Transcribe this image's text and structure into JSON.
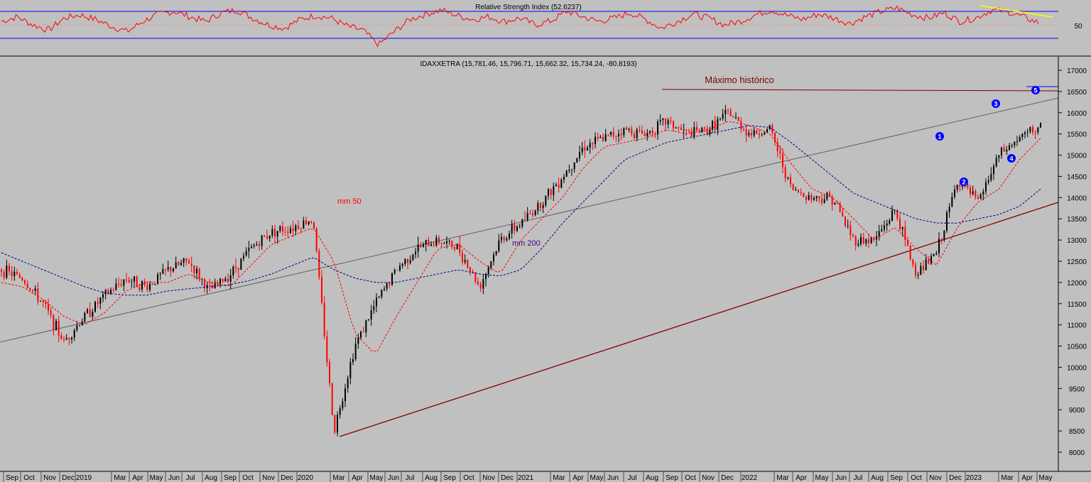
{
  "rsi_panel": {
    "title": "Relative Strength Index (52.6237)",
    "axis_ticks": [
      50
    ],
    "bands": [
      30,
      70
    ]
  },
  "price_panel": {
    "title": "IDAXXETRA (15,781.46, 15,796.71, 15,662.32, 15,734.24, -80.8193)",
    "annotations": {
      "ath": "Máximo histórico",
      "mm50": "mm 50",
      "mm200": "mm 200"
    },
    "wave_labels": [
      "1",
      "2",
      "3",
      "4",
      "5"
    ],
    "y_ticks": [
      17000,
      16500,
      16000,
      15500,
      15000,
      14500,
      14000,
      13500,
      13000,
      12500,
      12000,
      11500,
      11000,
      10500,
      10000,
      9500,
      9000,
      8500,
      8000
    ]
  },
  "x_axis": {
    "labels": [
      "Sep",
      "Oct",
      "Nov",
      "Dec",
      "2019",
      "Mar",
      "Apr",
      "May",
      "Jun",
      "Jul",
      "Aug",
      "Sep",
      "Oct",
      "Nov",
      "Dec",
      "2020",
      "Mar",
      "Apr",
      "May",
      "Jun",
      "Jul",
      "Aug",
      "Sep",
      "Oct",
      "Nov",
      "Dec",
      "2021",
      "Mar",
      "Apr",
      "May",
      "Jun",
      "Jul",
      "Aug",
      "Sep",
      "Oct",
      "Nov",
      "Dec",
      "2022",
      "Mar",
      "Apr",
      "May",
      "Jun",
      "Jul",
      "Aug",
      "Sep",
      "Oct",
      "Nov",
      "Dec",
      "2023",
      "Mar",
      "Apr",
      "May"
    ]
  },
  "colors": {
    "background": "#c0c0c0",
    "up": "#000000",
    "down": "#ff0000",
    "mm50": "#ff0000",
    "mm200": "#000080",
    "rsi": "#ff0000",
    "rsi_band": "#0000ff",
    "support": "#800000",
    "trend": "#606060",
    "ath_line": "#800000",
    "rsi_trend": "#ffff00",
    "wave": "#0000ff"
  },
  "chart_data": [
    {
      "type": "line",
      "title": "Relative Strength Index (52.6237)",
      "series": [
        {
          "values": [
            55,
            62,
            50,
            42,
            60,
            65,
            58,
            48,
            40,
            55,
            66,
            70,
            62,
            55,
            68,
            72,
            60,
            50,
            45,
            58,
            64,
            60,
            48,
            42,
            20,
            40,
            58,
            66,
            72,
            64,
            58,
            62,
            55,
            60,
            50,
            56,
            70,
            62,
            55,
            60,
            68,
            58,
            45,
            55,
            66,
            60,
            50,
            55,
            65,
            72,
            64,
            58,
            66,
            60,
            52,
            62,
            70,
            75,
            65,
            60,
            68,
            55,
            60,
            72,
            70,
            62,
            53
          ]
        }
      ],
      "ylim": [
        0,
        100
      ]
    },
    {
      "type": "line",
      "title": "IDAXXETRA (15,781.46, 15,796.71, 15,662.32, 15,734.24, -80.8193)",
      "x": [
        "Sep",
        "Oct",
        "Nov",
        "Dec",
        "2019",
        "Mar",
        "Apr",
        "May",
        "Jun",
        "Jul",
        "Aug",
        "Sep",
        "Oct",
        "Nov",
        "Dec",
        "2020",
        "Mar",
        "Apr",
        "May",
        "Jun",
        "Jul",
        "Aug",
        "Sep",
        "Oct",
        "Nov",
        "Dec",
        "2021",
        "Mar",
        "Apr",
        "May",
        "Jun",
        "Jul",
        "Aug",
        "Sep",
        "Oct",
        "Nov",
        "Dec",
        "2022",
        "Mar",
        "Apr",
        "May",
        "Jun",
        "Jul",
        "Aug",
        "Sep",
        "Oct",
        "Nov",
        "Dec",
        "2023",
        "Mar",
        "Apr"
      ],
      "series": [
        {
          "name": "IDAXXETRA",
          "values": [
            12300,
            12100,
            11500,
            10600,
            11200,
            11700,
            12100,
            11900,
            12300,
            12500,
            11800,
            12200,
            12800,
            13200,
            13300,
            13500,
            8500,
            10500,
            11500,
            12300,
            12800,
            13000,
            12800,
            11900,
            13000,
            13400,
            13900,
            14500,
            15200,
            15400,
            15600,
            15500,
            15800,
            15500,
            15600,
            16000,
            15500,
            15600,
            14200,
            14000,
            14000,
            13000,
            13000,
            13700,
            12200,
            12700,
            14400,
            13900,
            15000,
            15400,
            15700
          ]
        },
        {
          "name": "mm 50",
          "values": [
            12000,
            11900,
            11600,
            11200,
            11000,
            11300,
            11800,
            12000,
            12000,
            12200,
            12000,
            11900,
            12400,
            12900,
            13100,
            13300,
            12500,
            10800,
            10300,
            11200,
            12000,
            12800,
            12900,
            12500,
            12200,
            13000,
            13500,
            14000,
            14700,
            15200,
            15300,
            15400,
            15600,
            15500,
            15600,
            15800,
            15700,
            15500,
            14800,
            14200,
            14000,
            13500,
            13000,
            13300,
            12800,
            12400,
            13300,
            13900,
            14200,
            14900,
            15400
          ]
        },
        {
          "name": "mm 200",
          "values": [
            12700,
            12500,
            12300,
            12100,
            11900,
            11750,
            11700,
            11700,
            11800,
            11850,
            11900,
            11950,
            12050,
            12200,
            12400,
            12600,
            12300,
            12100,
            12000,
            12000,
            12100,
            12200,
            12300,
            12200,
            12150,
            12300,
            12800,
            13400,
            13900,
            14400,
            14900,
            15100,
            15300,
            15400,
            15500,
            15600,
            15700,
            15650,
            15300,
            14900,
            14500,
            14100,
            13900,
            13700,
            13500,
            13400,
            13400,
            13500,
            13600,
            13800,
            14200
          ]
        }
      ],
      "ylim": [
        8000,
        17000
      ]
    }
  ]
}
